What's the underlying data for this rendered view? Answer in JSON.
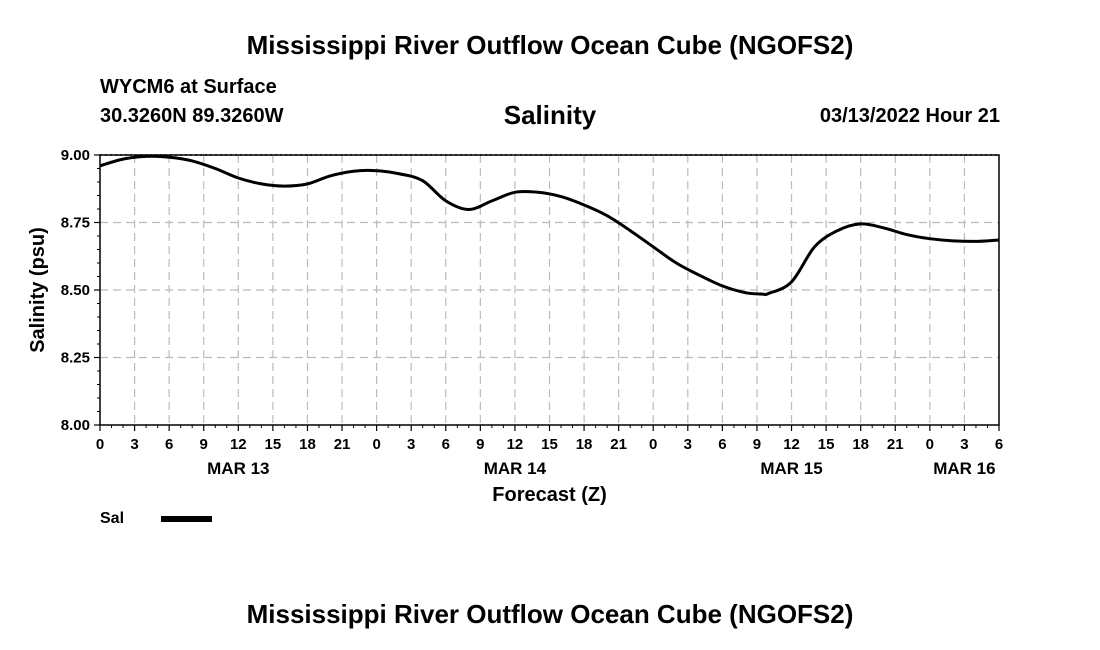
{
  "header": {
    "title": "Mississippi River Outflow Ocean Cube (NGOFS2)",
    "station": "WYCM6 at Surface",
    "coords": "30.3260N  89.3260W",
    "datetime": "03/13/2022 Hour 21"
  },
  "footer": {
    "title": "Mississippi River Outflow Ocean Cube (NGOFS2)"
  },
  "legend": {
    "label": "Sal"
  },
  "chart_data": {
    "type": "line",
    "title": "Salinity",
    "xlabel": "Forecast (Z)",
    "ylabel": "Salinity (psu)",
    "ylim": [
      8.0,
      9.0
    ],
    "xlim": [
      0,
      78
    ],
    "x_unit": "hours since MAR 13 00Z",
    "grid": true,
    "yticks": [
      8.0,
      8.25,
      8.5,
      8.75,
      9.0
    ],
    "ytick_labels": [
      "8.00",
      "8.25",
      "8.50",
      "8.75",
      "9.00"
    ],
    "xticks": [
      0,
      3,
      6,
      9,
      12,
      15,
      18,
      21,
      24,
      27,
      30,
      33,
      36,
      39,
      42,
      45,
      48,
      51,
      54,
      57,
      60,
      63,
      66,
      69,
      72,
      75,
      78
    ],
    "xtick_labels": [
      "0",
      "3",
      "6",
      "9",
      "12",
      "15",
      "18",
      "21",
      "0",
      "3",
      "6",
      "9",
      "12",
      "15",
      "18",
      "21",
      "0",
      "3",
      "6",
      "9",
      "12",
      "15",
      "18",
      "21",
      "0",
      "3",
      "6"
    ],
    "date_labels": [
      {
        "x": 12,
        "label": "MAR 13"
      },
      {
        "x": 36,
        "label": "MAR 14"
      },
      {
        "x": 60,
        "label": "MAR 15"
      },
      {
        "x": 75,
        "label": "MAR 16"
      }
    ],
    "series": [
      {
        "name": "Sal",
        "x": [
          0,
          2,
          4,
          6,
          8,
          10,
          12,
          14,
          16,
          18,
          20,
          22,
          24,
          26,
          28,
          30,
          32,
          34,
          36,
          38,
          40,
          42,
          44,
          46,
          48,
          50,
          52,
          54,
          56,
          57.5,
          58,
          60,
          62,
          64,
          66,
          68,
          70,
          72,
          74,
          76,
          78
        ],
        "values": [
          8.96,
          8.985,
          8.995,
          8.992,
          8.978,
          8.95,
          8.915,
          8.893,
          8.885,
          8.893,
          8.923,
          8.94,
          8.942,
          8.93,
          8.905,
          8.83,
          8.798,
          8.83,
          8.862,
          8.862,
          8.846,
          8.815,
          8.775,
          8.72,
          8.66,
          8.6,
          8.555,
          8.515,
          8.49,
          8.485,
          8.487,
          8.53,
          8.66,
          8.72,
          8.745,
          8.73,
          8.705,
          8.69,
          8.682,
          8.68,
          8.685
        ]
      }
    ]
  }
}
